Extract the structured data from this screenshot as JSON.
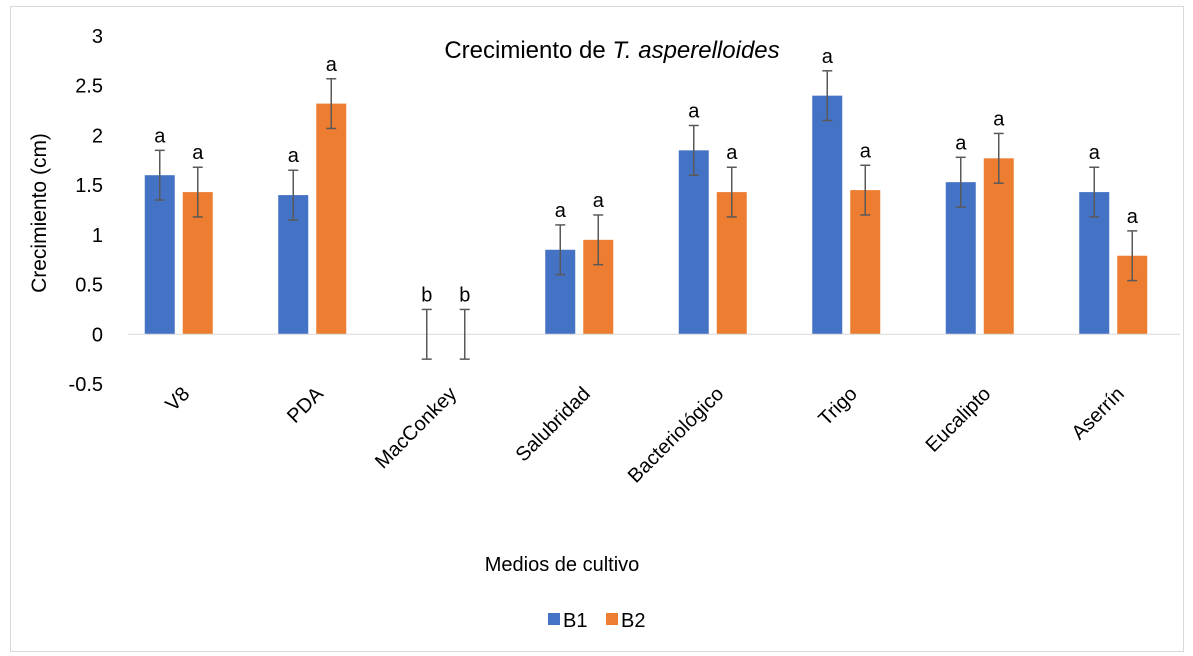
{
  "chart_data": {
    "type": "bar",
    "title_prefix": "Crecimiento de ",
    "title_italic": "T. asperelloides",
    "ylabel": "Crecimiento (cm)",
    "xlabel": "Medios de cultivo",
    "ylim": [
      -0.5,
      3
    ],
    "yticks": [
      "3",
      "2.5",
      "2",
      "1.5",
      "1",
      "0.5",
      "0",
      "-0.5"
    ],
    "ytick_values": [
      3,
      2.5,
      2,
      1.5,
      1,
      0.5,
      0,
      -0.5
    ],
    "categories": [
      "V8",
      "PDA",
      "MacConkey",
      "Salubridad",
      "Bacteriológico",
      "Trigo",
      "Eucalipto",
      "Aserrín"
    ],
    "series": [
      {
        "name": "B1",
        "color": "#4472C4",
        "values": [
          1.6,
          1.4,
          0,
          0.85,
          1.85,
          2.4,
          1.53,
          1.43
        ],
        "errors": [
          0.25,
          0.25,
          0.25,
          0.25,
          0.25,
          0.25,
          0.25,
          0.25
        ],
        "labels": [
          "a",
          "a",
          "b",
          "a",
          "a",
          "a",
          "a",
          "a"
        ]
      },
      {
        "name": "B2",
        "color": "#ED7D31",
        "values": [
          1.43,
          2.32,
          0,
          0.95,
          1.43,
          1.45,
          1.77,
          0.79
        ],
        "errors": [
          0.25,
          0.25,
          0.25,
          0.25,
          0.25,
          0.25,
          0.25,
          0.25
        ],
        "labels": [
          "a",
          "a",
          "b",
          "a",
          "a",
          "a",
          "a",
          "a"
        ]
      }
    ],
    "grid": false,
    "legend_position": "bottom"
  }
}
